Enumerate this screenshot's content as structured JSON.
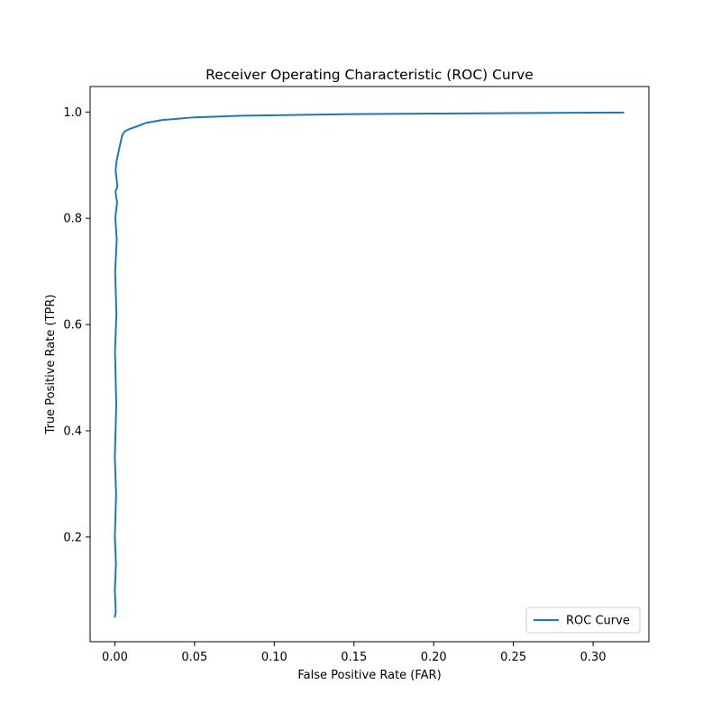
{
  "chart_data": {
    "type": "line",
    "title": "Receiver Operating Characteristic (ROC) Curve",
    "xlabel": "False Positive Rate (FAR)",
    "ylabel": "True Positive Rate (TPR)",
    "xlim": [
      -0.0155,
      0.335
    ],
    "ylim": [
      0.003,
      1.048
    ],
    "xticks": [
      0.0,
      0.05,
      0.1,
      0.15,
      0.2,
      0.25,
      0.3
    ],
    "xtick_labels": [
      "0.00",
      "0.05",
      "0.10",
      "0.15",
      "0.20",
      "0.25",
      "0.30"
    ],
    "yticks": [
      0.2,
      0.4,
      0.6,
      0.8,
      1.0
    ],
    "ytick_labels": [
      "0.2",
      "0.4",
      "0.6",
      "0.8",
      "1.0"
    ],
    "grid": false,
    "legend_position": "lower-right",
    "series": [
      {
        "name": "ROC Curve",
        "color": "#1f77b4",
        "x": [
          0.0,
          0.0006,
          0.0,
          0.0007,
          0.0,
          0.0008,
          0.0,
          0.0009,
          0.0001,
          0.001,
          0.0002,
          0.0012,
          0.0003,
          0.0014,
          0.0004,
          0.0016,
          0.0005,
          0.0008,
          0.0012,
          0.002,
          0.003,
          0.0045,
          0.006,
          0.009,
          0.013,
          0.02,
          0.03,
          0.05,
          0.08,
          0.1,
          0.15,
          0.2,
          0.25,
          0.319
        ],
        "y": [
          0.05,
          0.06,
          0.1,
          0.15,
          0.2,
          0.28,
          0.35,
          0.45,
          0.55,
          0.62,
          0.7,
          0.76,
          0.8,
          0.83,
          0.85,
          0.86,
          0.89,
          0.9,
          0.91,
          0.92,
          0.935,
          0.955,
          0.963,
          0.968,
          0.972,
          0.98,
          0.985,
          0.99,
          0.993,
          0.994,
          0.996,
          0.997,
          0.998,
          0.999
        ]
      }
    ]
  }
}
